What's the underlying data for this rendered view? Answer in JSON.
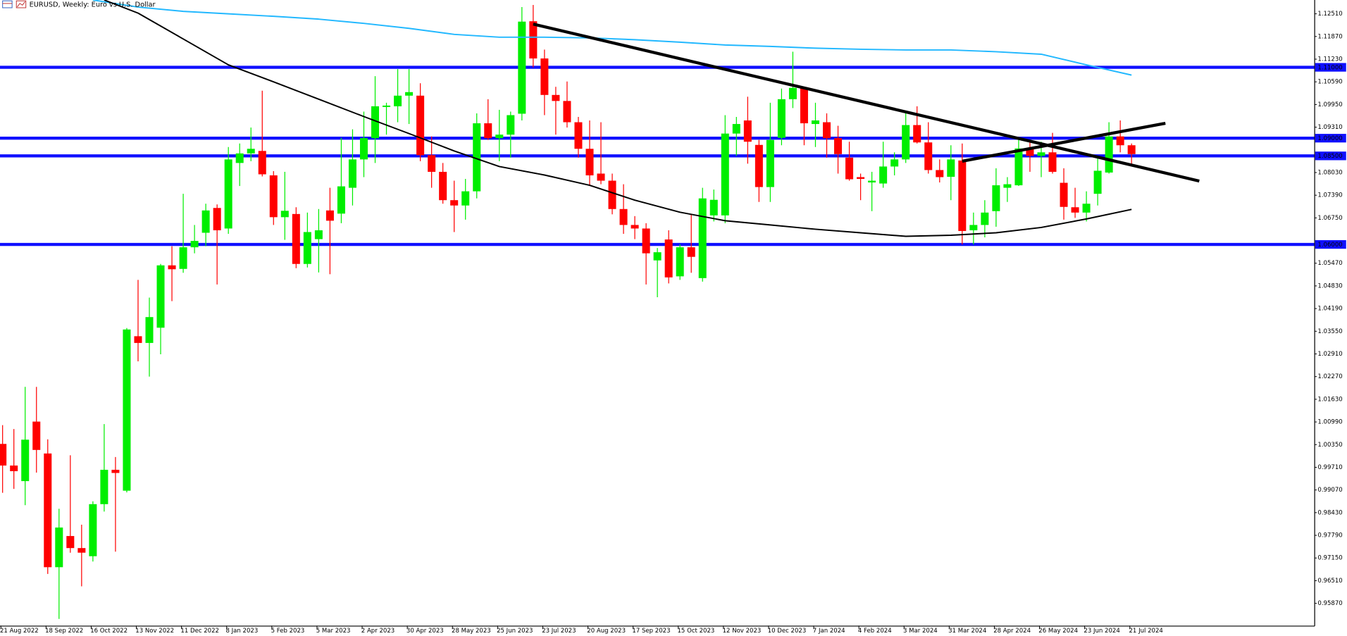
{
  "chart_data": {
    "type": "candlestick",
    "title": "EURUSD, Weekly:  Euro vs U.S. Dollar",
    "categories": [
      "21 Aug 2022",
      null,
      null,
      null,
      "18 Sep 2022",
      null,
      null,
      null,
      "16 Oct 2022",
      null,
      null,
      null,
      "13 Nov 2022",
      null,
      null,
      null,
      "11 Dec 2022",
      null,
      null,
      null,
      "8 Jan 2023",
      null,
      null,
      null,
      "5 Feb 2023",
      null,
      null,
      null,
      "5 Mar 2023",
      null,
      null,
      null,
      "2 Apr 2023",
      null,
      null,
      null,
      "30 Apr 2023",
      null,
      null,
      null,
      "28 May 2023",
      null,
      null,
      null,
      "25 Jun 2023",
      null,
      null,
      null,
      "23 Jul 2023",
      null,
      null,
      null,
      "20 Aug 2023",
      null,
      null,
      null,
      "17 Sep 2023",
      null,
      null,
      null,
      "15 Oct 2023",
      null,
      null,
      null,
      "12 Nov 2023",
      null,
      null,
      null,
      "10 Dec 2023",
      null,
      null,
      null,
      "7 Jan 2024",
      null,
      null,
      null,
      "4 Feb 2024",
      null,
      null,
      null,
      "3 Mar 2024",
      null,
      null,
      null,
      "31 Mar 2024",
      null,
      null,
      null,
      "28 Apr 2024",
      null,
      null,
      null,
      "26 May 2024",
      null,
      null,
      null,
      "23 Jun 2024",
      null,
      null,
      null,
      "21 Jul 2024"
    ],
    "open": [
      1.0037,
      0.9976,
      0.9932,
      1.01,
      1.001,
      0.9689,
      0.9777,
      0.9743,
      0.972,
      0.9867,
      0.9964,
      0.9905,
      1.0341,
      1.0322,
      1.0365,
      1.0541,
      1.0531,
      1.0592,
      1.0633,
      1.0703,
      1.0645,
      1.083,
      1.0857,
      1.0864,
      1.0795,
      1.0677,
      1.0686,
      1.0545,
      1.0615,
      1.0696,
      1.0687,
      1.076,
      1.084,
      1.09,
      1.0988,
      1.099,
      1.102,
      1.102,
      1.0852,
      1.0805,
      1.0725,
      1.071,
      1.075,
      1.0942,
      1.09,
      1.091,
      1.0969,
      1.123,
      1.1125,
      1.1022,
      1.1005,
      1.0945,
      1.087,
      1.08,
      1.078,
      1.07,
      1.0655,
      1.0645,
      1.0555,
      1.0614,
      1.051,
      1.0592,
      1.0505,
      1.0682,
      1.0682,
      1.0913,
      1.095,
      1.0881,
      1.0762,
      1.0901,
      1.101,
      1.1042,
      1.094,
      1.0945,
      1.09,
      1.0845,
      1.079,
      1.0775,
      1.0772,
      1.082,
      1.084,
      1.0937,
      1.0888,
      1.081,
      1.0791,
      1.0837,
      1.064,
      1.0655,
      1.0694,
      1.076,
      1.0767,
      1.0871,
      1.085,
      1.086,
      1.0774,
      1.0705,
      1.069,
      1.0743,
      1.0803,
      1.0905,
      1.088
    ],
    "high": [
      1.009,
      1.0079,
      1.0198,
      1.0198,
      1.005,
      0.9854,
      1.0005,
      0.9809,
      0.9875,
      1.0093,
      1.0,
      1.0364,
      1.05,
      1.045,
      1.0545,
      1.0595,
      1.0743,
      1.0655,
      1.0715,
      1.0713,
      1.0875,
      1.0885,
      1.093,
      1.1034,
      1.0807,
      1.0805,
      1.0705,
      1.069,
      1.07,
      1.076,
      1.0901,
      1.0925,
      1.0975,
      1.1075,
      1.1,
      1.1095,
      1.1095,
      1.1055,
      1.0905,
      1.083,
      1.078,
      1.0785,
      1.097,
      1.101,
      1.098,
      1.0975,
      1.127,
      1.1276,
      1.115,
      1.1045,
      1.106,
      1.096,
      1.095,
      1.0945,
      1.08,
      1.077,
      1.068,
      1.066,
      1.059,
      1.064,
      1.06,
      1.0686,
      1.076,
      1.0755,
      1.0965,
      1.096,
      1.1017,
      1.0895,
      1.1,
      1.104,
      1.1144,
      1.1045,
      1.1,
      1.097,
      1.0935,
      1.089,
      1.08,
      1.0805,
      1.089,
      1.086,
      1.0974,
      1.099,
      1.0945,
      1.084,
      1.088,
      1.0885,
      1.069,
      1.0725,
      1.0815,
      1.079,
      1.0895,
      1.0895,
      1.089,
      1.0915,
      1.0815,
      1.076,
      1.075,
      1.0845,
      1.0945,
      1.095,
      1.0885
    ],
    "low": [
      0.9899,
      0.991,
      0.9864,
      0.9956,
      0.967,
      0.9543,
      0.973,
      0.9635,
      0.9705,
      0.9846,
      0.9733,
      0.99,
      1.027,
      1.0227,
      1.029,
      1.044,
      1.052,
      1.0575,
      1.0595,
      1.0487,
      1.063,
      1.0765,
      1.0835,
      1.0792,
      1.0655,
      1.0613,
      1.0533,
      1.0535,
      1.0521,
      1.0516,
      1.066,
      1.071,
      1.079,
      1.083,
      1.091,
      1.0945,
      1.094,
      1.0835,
      1.076,
      1.0715,
      1.0635,
      1.067,
      1.073,
      1.0895,
      1.0835,
      1.0845,
      1.095,
      1.11,
      1.0965,
      1.091,
      1.093,
      1.0845,
      1.0765,
      1.077,
      1.0685,
      1.063,
      1.0615,
      1.0487,
      1.0451,
      1.049,
      1.05,
      1.052,
      1.0495,
      1.0665,
      1.066,
      1.085,
      1.0828,
      1.072,
      1.072,
      1.088,
      1.0985,
      1.088,
      1.0875,
      1.0845,
      1.08,
      1.078,
      1.0725,
      1.0694,
      1.076,
      1.0795,
      1.083,
      1.0885,
      1.08,
      1.0775,
      1.0725,
      1.06,
      1.06,
      1.062,
      1.065,
      1.072,
      1.0765,
      1.0805,
      1.079,
      1.08,
      1.067,
      1.0675,
      1.0665,
      1.071,
      1.08,
      1.086,
      1.0825
    ],
    "close": [
      0.9976,
      0.996,
      1.0049,
      1.002,
      0.9689,
      0.9801,
      0.9743,
      0.973,
      0.9867,
      0.9964,
      0.9955,
      1.036,
      1.0322,
      1.0395,
      1.0541,
      1.053,
      1.0592,
      1.061,
      1.0696,
      1.064,
      1.084,
      1.0857,
      1.087,
      1.0798,
      1.0677,
      1.0695,
      1.0545,
      1.0635,
      1.064,
      1.0667,
      1.0764,
      1.084,
      1.09,
      1.099,
      1.0992,
      1.102,
      1.103,
      1.0852,
      1.0805,
      1.0725,
      1.071,
      1.075,
      1.0942,
      1.09,
      1.091,
      1.0965,
      1.1229,
      1.1125,
      1.1022,
      1.1005,
      1.0945,
      1.087,
      1.0795,
      1.078,
      1.07,
      1.0655,
      1.0645,
      1.0575,
      1.0578,
      1.0507,
      1.0592,
      1.0565,
      1.073,
      1.0726,
      1.0913,
      1.094,
      1.089,
      1.0762,
      1.0895,
      1.101,
      1.1042,
      1.0942,
      1.095,
      1.09,
      1.0855,
      1.0784,
      1.0785,
      1.078,
      1.082,
      1.084,
      1.0937,
      1.0888,
      1.081,
      1.079,
      1.084,
      1.0638,
      1.0655,
      1.069,
      1.0767,
      1.077,
      1.0871,
      1.085,
      1.086,
      1.0805,
      1.0706,
      1.069,
      1.0715,
      1.0808,
      1.0905,
      1.088,
      1.0855
    ],
    "up_color": "#00ee00",
    "down_color": "#ff0000",
    "ylim": [
      0.9524,
      1.129
    ],
    "yticks": [
      {
        "value": 1.1251,
        "label": "1.12510"
      },
      {
        "value": 1.1187,
        "label": "1.11870"
      },
      {
        "value": 1.1123,
        "label": "1.11230"
      },
      {
        "value": 1.1059,
        "label": "1.10590"
      },
      {
        "value": 1.0995,
        "label": "1.09950"
      },
      {
        "value": 1.0931,
        "label": "1.09310"
      },
      {
        "value": 1.0803,
        "label": "1.08030"
      },
      {
        "value": 1.0739,
        "label": "1.07390"
      },
      {
        "value": 1.0675,
        "label": "1.06750"
      },
      {
        "value": 1.0547,
        "label": "1.05470"
      },
      {
        "value": 1.0483,
        "label": "1.04830"
      },
      {
        "value": 1.0419,
        "label": "1.04190"
      },
      {
        "value": 1.0355,
        "label": "1.03550"
      },
      {
        "value": 1.0291,
        "label": "1.02910"
      },
      {
        "value": 1.0227,
        "label": "1.02270"
      },
      {
        "value": 1.0163,
        "label": "1.01630"
      },
      {
        "value": 1.0099,
        "label": "1.00990"
      },
      {
        "value": 1.0035,
        "label": "1.00350"
      },
      {
        "value": 0.9971,
        "label": "0.99710"
      },
      {
        "value": 0.9907,
        "label": "0.99070"
      },
      {
        "value": 0.9843,
        "label": "0.98430"
      },
      {
        "value": 0.9779,
        "label": "0.97790"
      },
      {
        "value": 0.9715,
        "label": "0.97150"
      },
      {
        "value": 0.9651,
        "label": "0.96510"
      },
      {
        "value": 0.9587,
        "label": "0.95870"
      }
    ],
    "levels": [
      {
        "value": 1.11,
        "label": "1.11000"
      },
      {
        "value": 1.09,
        "label": "1.09000"
      },
      {
        "value": 1.085,
        "label": "1.08500"
      },
      {
        "value": 1.06,
        "label": "1.06000"
      }
    ],
    "level_color": "#1010ff",
    "lines": [
      {
        "color": "#22b8ff",
        "x": [
          8,
          12,
          16,
          20,
          24,
          28,
          32,
          36,
          40,
          44,
          48,
          52,
          56,
          60,
          64,
          68,
          72,
          76,
          80,
          84,
          88,
          92,
          96,
          100
        ],
        "values": [
          1.129,
          1.127,
          1.1258,
          1.1251,
          1.1244,
          1.1236,
          1.1224,
          1.121,
          1.1193,
          1.1185,
          1.1185,
          1.1183,
          1.1178,
          1.1171,
          1.1163,
          1.1159,
          1.1154,
          1.1151,
          1.1149,
          1.1149,
          1.1144,
          1.1137,
          1.1107,
          1.1078
        ]
      },
      {
        "color": "#000000",
        "x": [
          9,
          12,
          16,
          20,
          24,
          28,
          32,
          36,
          40,
          44,
          48,
          52,
          56,
          60,
          64,
          68,
          72,
          76,
          80,
          84,
          88,
          92,
          96,
          100
        ],
        "values": [
          1.129,
          1.1253,
          1.118,
          1.1107,
          1.1059,
          1.101,
          1.0961,
          1.0913,
          1.0864,
          1.082,
          1.0796,
          1.0767,
          1.0725,
          1.0691,
          1.0667,
          1.0655,
          1.0643,
          1.0633,
          1.0623,
          1.0626,
          1.0633,
          1.0648,
          1.0672,
          1.0699
        ]
      }
    ],
    "trendlines": [
      {
        "color": "#000000",
        "x": [
          47,
          106
        ],
        "values": [
          1.1222,
          1.0779
        ]
      },
      {
        "color": "#000000",
        "x": [
          85,
          103
        ],
        "values": [
          1.0835,
          1.0942
        ]
      }
    ]
  }
}
